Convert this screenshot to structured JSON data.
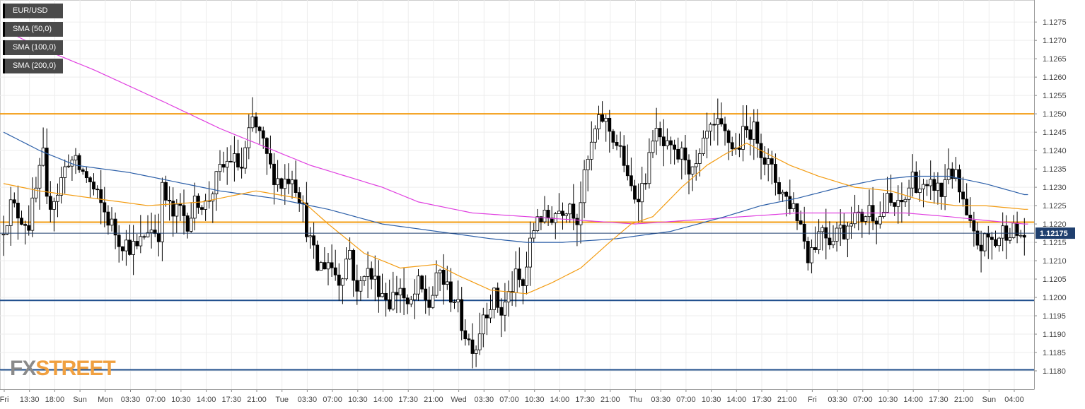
{
  "chart_data": {
    "type": "candlestick",
    "symbol": "EUR/USD",
    "ylim": [
      1.1175,
      1.1281
    ],
    "y_ticks": [
      "1.1180",
      "1.1185",
      "1.1190",
      "1.1195",
      "1.1200",
      "1.1205",
      "1.1210",
      "1.1215",
      "1.1220",
      "1.1225",
      "1.1230",
      "1.1235",
      "1.1240",
      "1.1245",
      "1.1250",
      "1.1255",
      "1.1260",
      "1.1265",
      "1.1270",
      "1.1275"
    ],
    "x_ticks": [
      "Fri",
      "13:30",
      "18:00",
      "Sun",
      "Mon",
      "03:30",
      "07:00",
      "10:30",
      "14:00",
      "17:30",
      "21:00",
      "Tue",
      "03:30",
      "07:00",
      "10:30",
      "14:00",
      "17:30",
      "21:00",
      "Wed",
      "03:30",
      "07:00",
      "10:30",
      "14:00",
      "17:30",
      "21:00",
      "Thu",
      "03:30",
      "07:00",
      "10:30",
      "14:00",
      "17:30",
      "21:00",
      "Fri",
      "03:30",
      "07:00",
      "10:30",
      "14:00",
      "17:30",
      "21:00",
      "Sun",
      "04:00"
    ],
    "current_price": "1.12175",
    "grid": true,
    "legend_placement": "top-left",
    "legend": [
      {
        "label": "EUR/USD",
        "color": "#000000"
      },
      {
        "label": "SMA (50,0)",
        "color": "#f39c12"
      },
      {
        "label": "SMA (100,0)",
        "color": "#2c5fa8"
      },
      {
        "label": "SMA (200,0)",
        "color": "#e040e0"
      }
    ],
    "horizontal_levels": [
      {
        "value": 1.125,
        "color": "#f39c12"
      },
      {
        "value": 1.12205,
        "color": "#f39c12"
      },
      {
        "value": 1.11992,
        "color": "#1f4e8c"
      },
      {
        "value": 1.11803,
        "color": "#1f4e8c"
      }
    ],
    "price_path": [
      [
        0,
        1.1217
      ],
      [
        3,
        1.1225
      ],
      [
        8,
        1.122
      ],
      [
        12,
        1.1238
      ],
      [
        13,
        1.1225
      ],
      [
        16,
        1.1229
      ],
      [
        19,
        1.1238
      ],
      [
        24,
        1.1233
      ],
      [
        28,
        1.1225
      ],
      [
        33,
        1.1216
      ],
      [
        38,
        1.1213
      ],
      [
        41,
        1.1219
      ],
      [
        44,
        1.1218
      ],
      [
        45,
        1.1229
      ],
      [
        48,
        1.1222
      ],
      [
        50,
        1.1224
      ],
      [
        52,
        1.1221
      ],
      [
        55,
        1.1227
      ],
      [
        57,
        1.1225
      ],
      [
        61,
        1.1234
      ],
      [
        64,
        1.1238
      ],
      [
        67,
        1.1235
      ],
      [
        70,
        1.1248
      ],
      [
        72,
        1.1244
      ],
      [
        75,
        1.1235
      ],
      [
        78,
        1.1231
      ],
      [
        81,
        1.1234
      ],
      [
        83,
        1.1228
      ],
      [
        86,
        1.1215
      ],
      [
        88,
        1.1208
      ],
      [
        91,
        1.121
      ],
      [
        94,
        1.1205
      ],
      [
        97,
        1.1213
      ],
      [
        99,
        1.12
      ],
      [
        101,
        1.1208
      ],
      [
        105,
        1.1203
      ],
      [
        108,
        1.1199
      ],
      [
        111,
        1.1203
      ],
      [
        113,
        1.1196
      ],
      [
        116,
        1.1203
      ],
      [
        119,
        1.1198
      ],
      [
        122,
        1.1207
      ],
      [
        124,
        1.1202
      ],
      [
        126,
        1.12
      ],
      [
        128,
        1.1193
      ],
      [
        130,
        1.1188
      ],
      [
        132,
        1.1187
      ],
      [
        134,
        1.1196
      ],
      [
        137,
        1.12
      ],
      [
        139,
        1.1196
      ],
      [
        143,
        1.1205
      ],
      [
        145,
        1.1203
      ],
      [
        147,
        1.1214
      ],
      [
        149,
        1.1223
      ],
      [
        151,
        1.1221
      ],
      [
        155,
        1.1224
      ],
      [
        158,
        1.1226
      ],
      [
        160,
        1.1222
      ],
      [
        163,
        1.1237
      ],
      [
        165,
        1.1245
      ],
      [
        167,
        1.1249
      ],
      [
        170,
        1.1244
      ],
      [
        173,
        1.1237
      ],
      [
        174,
        1.1231
      ],
      [
        176,
        1.1228
      ],
      [
        178,
        1.123
      ],
      [
        180,
        1.1237
      ],
      [
        181,
        1.1245
      ],
      [
        184,
        1.1241
      ],
      [
        187,
        1.1238
      ],
      [
        190,
        1.1239
      ],
      [
        192,
        1.1233
      ],
      [
        194,
        1.1237
      ],
      [
        196,
        1.1244
      ],
      [
        199,
        1.1246
      ],
      [
        201,
        1.1244
      ],
      [
        204,
        1.124
      ],
      [
        206,
        1.1244
      ],
      [
        208,
        1.1246
      ],
      [
        210,
        1.1244
      ],
      [
        212,
        1.1238
      ],
      [
        214,
        1.1234
      ],
      [
        216,
        1.123
      ],
      [
        218,
        1.1227
      ],
      [
        220,
        1.1225
      ],
      [
        222,
        1.122
      ],
      [
        224,
        1.1212
      ],
      [
        226,
        1.1215
      ],
      [
        228,
        1.122
      ],
      [
        230,
        1.1216
      ],
      [
        232,
        1.1219
      ],
      [
        234,
        1.1218
      ],
      [
        236,
        1.1223
      ],
      [
        238,
        1.1221
      ],
      [
        241,
        1.1224
      ],
      [
        244,
        1.1222
      ],
      [
        246,
        1.1226
      ],
      [
        249,
        1.1224
      ],
      [
        251,
        1.1227
      ],
      [
        253,
        1.1233
      ],
      [
        255,
        1.123
      ],
      [
        257,
        1.1228
      ],
      [
        259,
        1.1231
      ],
      [
        261,
        1.1228
      ],
      [
        263,
        1.1236
      ],
      [
        265,
        1.1232
      ],
      [
        267,
        1.1225
      ],
      [
        268,
        1.1221
      ],
      [
        270,
        1.1216
      ],
      [
        272,
        1.1214
      ],
      [
        274,
        1.1216
      ],
      [
        276,
        1.1215
      ],
      [
        278,
        1.1218
      ],
      [
        280,
        1.1219
      ],
      [
        282,
        1.1217
      ]
    ],
    "sma50": [
      [
        0,
        1.1231
      ],
      [
        10,
        1.1229
      ],
      [
        25,
        1.1227
      ],
      [
        40,
        1.1225
      ],
      [
        55,
        1.1226
      ],
      [
        70,
        1.1229
      ],
      [
        82,
        1.1227
      ],
      [
        90,
        1.122
      ],
      [
        100,
        1.1212
      ],
      [
        110,
        1.1208
      ],
      [
        120,
        1.1209
      ],
      [
        126,
        1.1206
      ],
      [
        135,
        1.1202
      ],
      [
        145,
        1.1201
      ],
      [
        152,
        1.1204
      ],
      [
        160,
        1.1208
      ],
      [
        168,
        1.1215
      ],
      [
        174,
        1.122
      ],
      [
        180,
        1.1222
      ],
      [
        188,
        1.123
      ],
      [
        195,
        1.1236
      ],
      [
        200,
        1.1239
      ],
      [
        206,
        1.1242
      ],
      [
        212,
        1.1239
      ],
      [
        218,
        1.1236
      ],
      [
        226,
        1.1233
      ],
      [
        236,
        1.123
      ],
      [
        246,
        1.1229
      ],
      [
        256,
        1.1226
      ],
      [
        264,
        1.1225
      ],
      [
        272,
        1.1225
      ],
      [
        283,
        1.1224
      ]
    ],
    "sma100": [
      [
        0,
        1.1245
      ],
      [
        10,
        1.124
      ],
      [
        20,
        1.1236
      ],
      [
        35,
        1.1234
      ],
      [
        45,
        1.1232
      ],
      [
        60,
        1.1229
      ],
      [
        75,
        1.1227
      ],
      [
        90,
        1.1224
      ],
      [
        105,
        1.122
      ],
      [
        120,
        1.1218
      ],
      [
        135,
        1.1216
      ],
      [
        145,
        1.1215
      ],
      [
        155,
        1.1215
      ],
      [
        170,
        1.1216
      ],
      [
        185,
        1.1218
      ],
      [
        200,
        1.1222
      ],
      [
        210,
        1.1225
      ],
      [
        220,
        1.1227
      ],
      [
        232,
        1.123
      ],
      [
        242,
        1.1232
      ],
      [
        252,
        1.1233
      ],
      [
        262,
        1.1233
      ],
      [
        272,
        1.1231
      ],
      [
        283,
        1.1228
      ]
    ],
    "sma200": [
      [
        0,
        1.1273
      ],
      [
        10,
        1.1268
      ],
      [
        25,
        1.1262
      ],
      [
        45,
        1.1253
      ],
      [
        60,
        1.1246
      ],
      [
        75,
        1.124
      ],
      [
        85,
        1.1236
      ],
      [
        95,
        1.1233
      ],
      [
        105,
        1.123
      ],
      [
        115,
        1.1226
      ],
      [
        130,
        1.1223
      ],
      [
        145,
        1.1222
      ],
      [
        160,
        1.1221
      ],
      [
        175,
        1.122
      ],
      [
        190,
        1.1221
      ],
      [
        205,
        1.1222
      ],
      [
        220,
        1.1223
      ],
      [
        235,
        1.1223
      ],
      [
        250,
        1.1223
      ],
      [
        262,
        1.1222
      ],
      [
        272,
        1.1221
      ],
      [
        283,
        1.122
      ]
    ]
  },
  "branding": {
    "fx": "FX",
    "street": "STREET"
  }
}
